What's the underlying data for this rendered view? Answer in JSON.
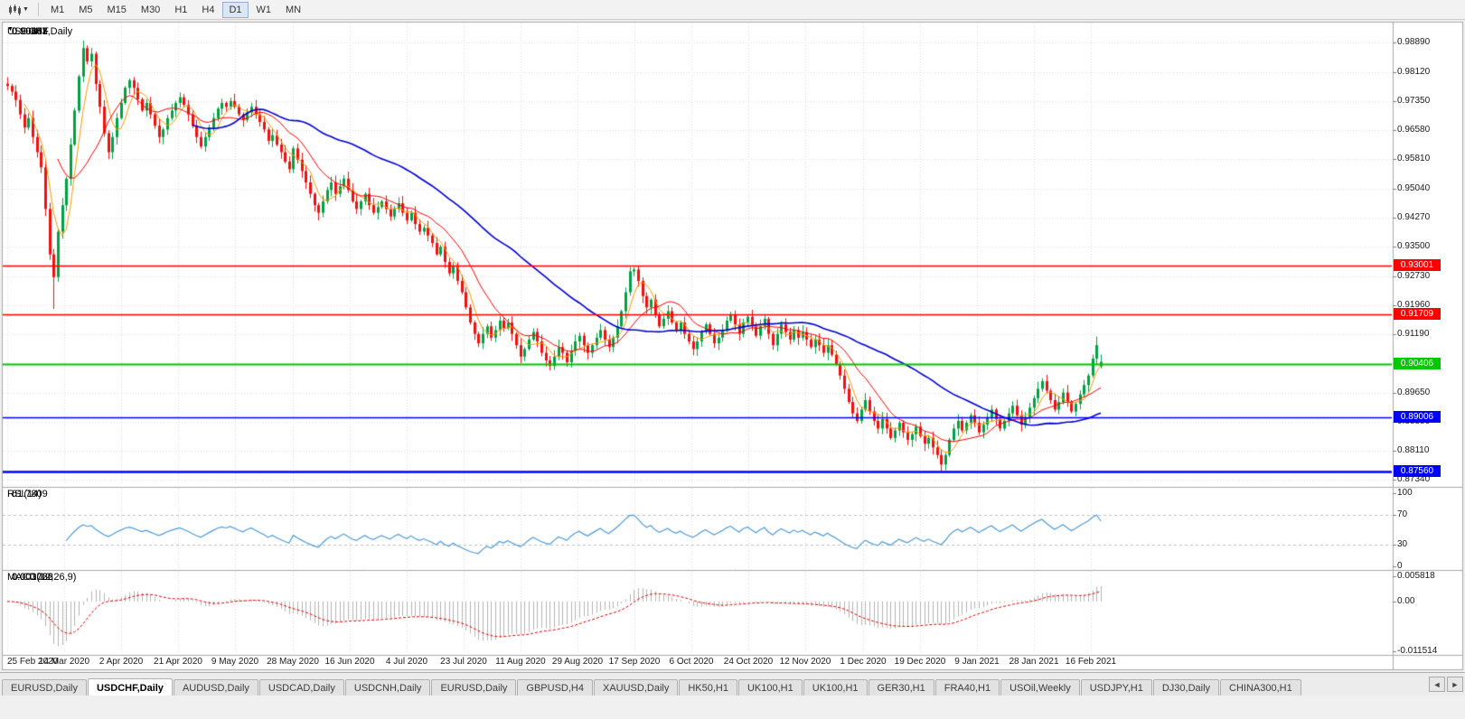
{
  "toolbar": {
    "timeframes": [
      "M1",
      "M5",
      "M15",
      "M30",
      "H1",
      "H4",
      "D1",
      "W1",
      "MN"
    ],
    "active_timeframe": "D1"
  },
  "chart": {
    "title": {
      "marker": "▼",
      "symbol_period": "USDCHF,Daily",
      "open": "0.90341",
      "high": "0.90653",
      "low": "0.90287",
      "close": "0.90461"
    }
  },
  "chart_data": {
    "type": "candlestick",
    "symbol": "USDCHF",
    "period": "Daily",
    "title_ohlc": [
      0.90341,
      0.90653,
      0.90287,
      0.90461
    ],
    "colors": {
      "up": "#00a143",
      "down": "#ee1111",
      "ma_blue": "#0000d0",
      "ma_red": "#ff0000",
      "ma_orange": "#ff9900",
      "rsi": "#4f9bd5",
      "macd_hist": "#b4b4b4",
      "macd_signal": "#e00000",
      "grid": "#dcdcdc"
    },
    "closes": [
      0.9775,
      0.976,
      0.9738,
      0.97,
      0.9665,
      0.969,
      0.964,
      0.96,
      0.956,
      0.945,
      0.933,
      0.927,
      0.939,
      0.946,
      0.953,
      0.962,
      0.971,
      0.98,
      0.9875,
      0.984,
      0.986,
      0.978,
      0.972,
      0.965,
      0.96,
      0.964,
      0.969,
      0.973,
      0.977,
      0.979,
      0.977,
      0.974,
      0.971,
      0.973,
      0.97,
      0.967,
      0.964,
      0.966,
      0.969,
      0.971,
      0.973,
      0.9745,
      0.9725,
      0.97,
      0.967,
      0.964,
      0.9615,
      0.964,
      0.9665,
      0.969,
      0.9715,
      0.973,
      0.972,
      0.9735,
      0.972,
      0.97,
      0.9685,
      0.9705,
      0.972,
      0.97,
      0.968,
      0.966,
      0.963,
      0.9645,
      0.962,
      0.96,
      0.9575,
      0.9555,
      0.961,
      0.958,
      0.955,
      0.952,
      0.949,
      0.946,
      0.944,
      0.947,
      0.95,
      0.952,
      0.949,
      0.951,
      0.953,
      0.95,
      0.947,
      0.945,
      0.947,
      0.949,
      0.946,
      0.944,
      0.9455,
      0.947,
      0.945,
      0.943,
      0.945,
      0.9465,
      0.944,
      0.942,
      0.944,
      0.941,
      0.939,
      0.94,
      0.938,
      0.936,
      0.933,
      0.935,
      0.931,
      0.928,
      0.93,
      0.926,
      0.923,
      0.919,
      0.915,
      0.912,
      0.9095,
      0.912,
      0.914,
      0.911,
      0.913,
      0.9155,
      0.9135,
      0.915,
      0.912,
      0.909,
      0.906,
      0.908,
      0.9105,
      0.9125,
      0.91,
      0.907,
      0.905,
      0.9035,
      0.906,
      0.9085,
      0.907,
      0.9045,
      0.9075,
      0.91,
      0.9115,
      0.909,
      0.907,
      0.909,
      0.911,
      0.913,
      0.9105,
      0.9085,
      0.911,
      0.914,
      0.918,
      0.923,
      0.9285,
      0.929,
      0.926,
      0.922,
      0.919,
      0.921,
      0.917,
      0.914,
      0.916,
      0.918,
      0.915,
      0.913,
      0.915,
      0.912,
      0.91,
      0.908,
      0.91,
      0.9125,
      0.9145,
      0.912,
      0.9095,
      0.911,
      0.913,
      0.9155,
      0.917,
      0.9145,
      0.912,
      0.915,
      0.9165,
      0.914,
      0.9115,
      0.914,
      0.916,
      0.912,
      0.909,
      0.912,
      0.9145,
      0.9125,
      0.9105,
      0.913,
      0.911,
      0.9125,
      0.9105,
      0.9085,
      0.9105,
      0.909,
      0.907,
      0.909,
      0.9065,
      0.904,
      0.901,
      0.8975,
      0.894,
      0.891,
      0.889,
      0.892,
      0.8945,
      0.8915,
      0.889,
      0.887,
      0.8895,
      0.887,
      0.8845,
      0.8865,
      0.8885,
      0.886,
      0.884,
      0.8855,
      0.8875,
      0.885,
      0.883,
      0.8845,
      0.882,
      0.88,
      0.8775,
      0.88,
      0.884,
      0.887,
      0.889,
      0.8865,
      0.8885,
      0.8905,
      0.8885,
      0.886,
      0.888,
      0.89,
      0.892,
      0.8895,
      0.887,
      0.889,
      0.891,
      0.893,
      0.8905,
      0.888,
      0.89,
      0.8925,
      0.895,
      0.8975,
      0.8995,
      0.897,
      0.8945,
      0.892,
      0.894,
      0.8965,
      0.894,
      0.8915,
      0.8935,
      0.896,
      0.8985,
      0.901,
      0.9055,
      0.909,
      0.90461
    ],
    "specials": {
      "11": {
        "low": 0.9186
      },
      "18": {
        "high": 0.9895
      },
      "149": {
        "high": 0.9296
      },
      "222": {
        "low": 0.8757
      },
      "259": {
        "high": 0.9113
      },
      "260": {
        "open": 0.90341,
        "high": 0.90653,
        "low": 0.90287,
        "close": 0.90461
      }
    },
    "moving_averages": [
      {
        "name": "slow-ma",
        "period": 45,
        "color": "#0000d0",
        "width": 1.6
      },
      {
        "name": "medium-ma",
        "period": 13,
        "color": "#ff0000",
        "width": 1
      },
      {
        "name": "fast-ma",
        "period": 5,
        "color": "#ff9900",
        "width": 1
      }
    ],
    "hlines": [
      {
        "label": "0.93001",
        "price": 0.93001,
        "color": "#ff0000",
        "width": 1.4,
        "box": true
      },
      {
        "label": "0.91709",
        "price": 0.91709,
        "color": "#ff0000",
        "width": 1.4,
        "box": true
      },
      {
        "label": "0.90406",
        "price": 0.90406,
        "color": "#00c800",
        "width": 2,
        "box": true
      },
      {
        "label": "0.89006",
        "price": 0.89006,
        "color": "#0000ff",
        "width": 1.4,
        "box": true
      },
      {
        "label": "0.87560",
        "price": 0.8756,
        "color": "#0000ff",
        "width": 2.4,
        "box": true
      }
    ],
    "price_axis": {
      "min": 0.8723,
      "max": 0.994,
      "ticks": [
        "0.98890",
        "0.98120",
        "0.97350",
        "0.96580",
        "0.95810",
        "0.95040",
        "0.94270",
        "0.93500",
        "0.92730",
        "0.91960",
        "0.91190",
        "0.90420",
        "0.89650",
        "0.88880",
        "0.88110",
        "0.87340"
      ]
    },
    "x_labels": [
      "25 Feb 2020",
      "14 Mar 2020",
      "2 Apr 2020",
      "21 Apr 2020",
      "9 May 2020",
      "28 May 2020",
      "16 Jun 2020",
      "4 Jul 2020",
      "23 Jul 2020",
      "11 Aug 2020",
      "29 Aug 2020",
      "17 Sep 2020",
      "6 Oct 2020",
      "24 Oct 2020",
      "12 Nov 2020",
      "1 Dec 2020",
      "19 Dec 2020",
      "9 Jan 2021",
      "28 Jan 2021",
      "16 Feb 2021"
    ],
    "rsi": {
      "label": "RSI(14)",
      "value": "61.7809",
      "period": 14,
      "levels": [
        30,
        70
      ],
      "scale": [
        0,
        100
      ],
      "axis_ticks": [
        100,
        70,
        30,
        0
      ]
    },
    "macd": {
      "label": "MACD(12,26,9)",
      "main": "0.003066",
      "signal": "0.001722",
      "fast": 12,
      "slow": 26,
      "signal_period": 9,
      "scale": [
        -0.011514,
        0.005818
      ],
      "axis_ticks": [
        {
          "label": "0.005818",
          "value": 0.005818
        },
        {
          "label": "0.00",
          "value": 0
        },
        {
          "label": "-0.011514",
          "value": -0.011514
        }
      ]
    }
  },
  "tabs": {
    "items": [
      {
        "label": "EURUSD,Daily",
        "active": false
      },
      {
        "label": "USDCHF,Daily",
        "active": true
      },
      {
        "label": "AUDUSD,Daily",
        "active": false
      },
      {
        "label": "USDCAD,Daily",
        "active": false
      },
      {
        "label": "USDCNH,Daily",
        "active": false
      },
      {
        "label": "EURUSD,Daily",
        "active": false
      },
      {
        "label": "GBPUSD,H4",
        "active": false
      },
      {
        "label": "XAUUSD,Daily",
        "active": false
      },
      {
        "label": "HK50,H1",
        "active": false
      },
      {
        "label": "UK100,H1",
        "active": false
      },
      {
        "label": "UK100,H1",
        "active": false
      },
      {
        "label": "GER30,H1",
        "active": false
      },
      {
        "label": "FRA40,H1",
        "active": false
      },
      {
        "label": "USOil,Weekly",
        "active": false
      },
      {
        "label": "USDJPY,H1",
        "active": false
      },
      {
        "label": "DJ30,Daily",
        "active": false
      },
      {
        "label": "CHINA300,H1",
        "active": false
      }
    ],
    "scroll_left_arrow": "◄",
    "scroll_right_arrow": "►"
  }
}
